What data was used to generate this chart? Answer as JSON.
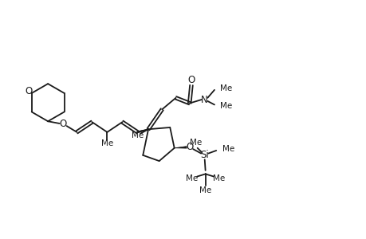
{
  "background": "#ffffff",
  "line_color": "#1a1a1a",
  "lw": 1.3,
  "font_size": 8.5,
  "fig_width": 4.6,
  "fig_height": 3.0,
  "xlim": [
    0,
    10
  ],
  "ylim": [
    0,
    6.5
  ]
}
